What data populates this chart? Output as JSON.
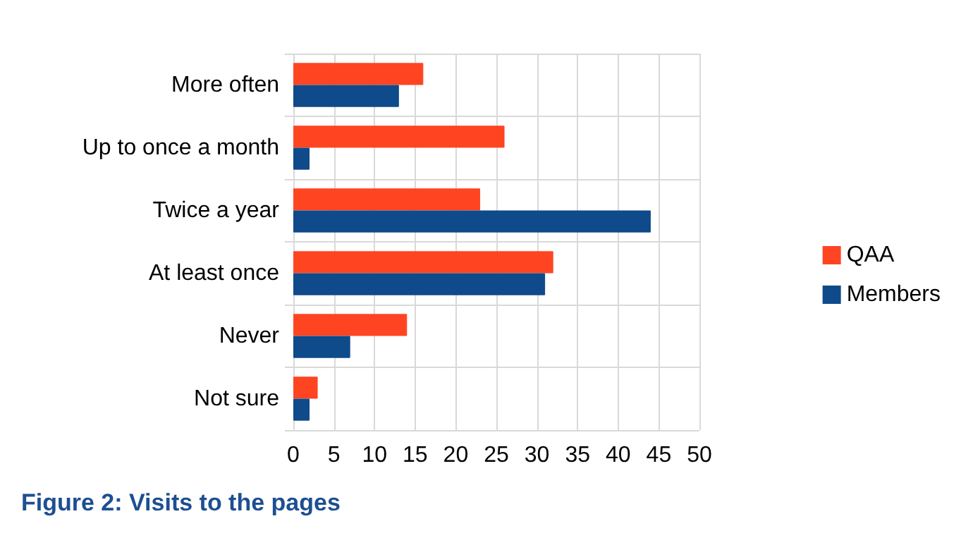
{
  "chart_data": {
    "type": "bar",
    "orientation": "horizontal",
    "title": "Figure 2: Visits to the pages",
    "categories": [
      "More often",
      "Up to once a month",
      "Twice a year",
      "At least once",
      "Never",
      "Not sure"
    ],
    "series": [
      {
        "name": "QAA",
        "color": "#ff4422",
        "values": [
          16,
          26,
          23,
          32,
          14,
          3
        ]
      },
      {
        "name": "Members",
        "color": "#0f4a8a",
        "values": [
          13,
          2,
          44,
          31,
          7,
          2
        ]
      }
    ],
    "xlim": [
      0,
      50
    ],
    "xticks": [
      0,
      5,
      10,
      15,
      20,
      25,
      30,
      35,
      40,
      45,
      50
    ],
    "grid": true,
    "legend": "right"
  }
}
